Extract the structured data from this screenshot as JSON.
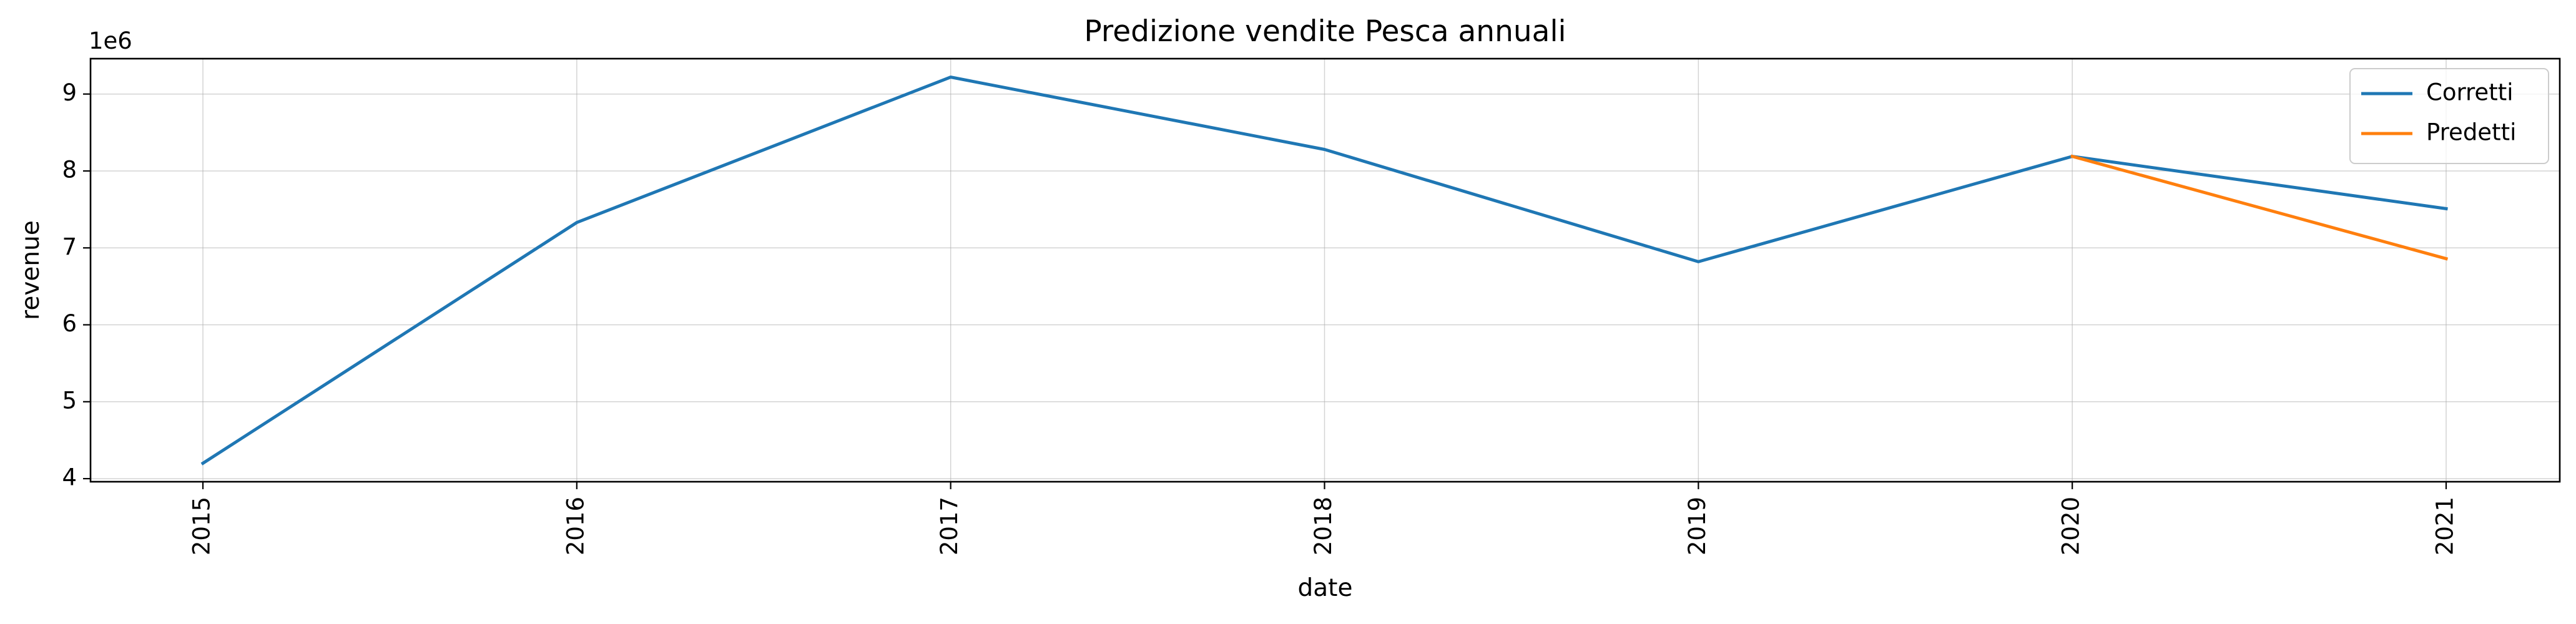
{
  "chart_data": {
    "type": "line",
    "title": "Predizione vendite Pesca annuali",
    "xlabel": "date",
    "ylabel": "revenue",
    "y_offset_label": "1e6",
    "x": [
      "2015",
      "2016",
      "2017",
      "2018",
      "2019",
      "2020",
      "2021"
    ],
    "x_ticks": [
      "2015",
      "2016",
      "2017",
      "2018",
      "2019",
      "2020",
      "2021"
    ],
    "y_ticks": [
      4,
      5,
      6,
      7,
      8,
      9
    ],
    "y_tick_labels": [
      "4",
      "5",
      "6",
      "7",
      "8",
      "9"
    ],
    "ylim": [
      3.96,
      9.46
    ],
    "grid": true,
    "legend_position": "top-right",
    "series": [
      {
        "name": "Corretti",
        "color": "#1f77b4",
        "x": [
          "2015",
          "2016",
          "2017",
          "2018",
          "2019",
          "2020",
          "2021"
        ],
        "values": [
          4.2,
          7.33,
          9.22,
          8.28,
          6.82,
          8.19,
          7.51
        ]
      },
      {
        "name": "Predetti",
        "color": "#ff7f0e",
        "x": [
          "2020",
          "2021"
        ],
        "values": [
          8.19,
          6.86
        ]
      }
    ]
  }
}
